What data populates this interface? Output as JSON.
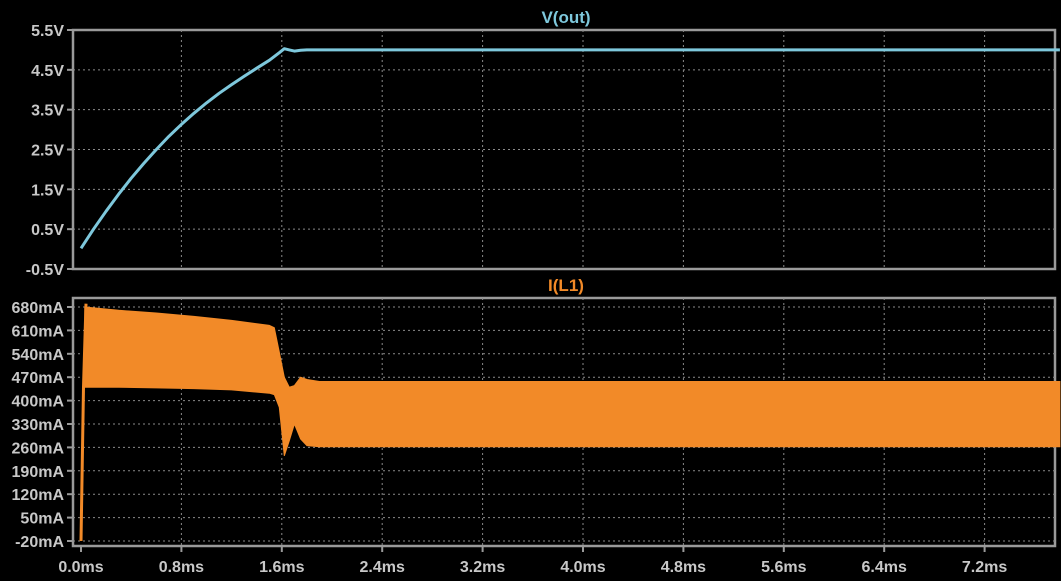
{
  "chart_data": [
    {
      "type": "line",
      "title": "V(out)",
      "color": "#7ec8dc",
      "ylim": [
        -0.5,
        5.5
      ],
      "xlim": [
        0,
        7.8
      ],
      "x_unit": "ms",
      "y_ticks": [
        "5.5V",
        "4.5V",
        "3.5V",
        "2.5V",
        "1.5V",
        "0.5V",
        "-0.5V"
      ],
      "y_tick_values": [
        5.5,
        4.5,
        3.5,
        2.5,
        1.5,
        0.5,
        -0.5
      ],
      "series": [
        {
          "x": [
            0,
            0.1,
            0.2,
            0.3,
            0.4,
            0.5,
            0.6,
            0.7,
            0.8,
            0.9,
            1.0,
            1.1,
            1.2,
            1.3,
            1.4,
            1.5,
            1.58,
            1.62,
            1.66,
            1.7,
            1.75,
            1.8,
            2.0,
            2.4,
            3.2,
            4.0,
            4.8,
            5.6,
            6.4,
            7.2,
            7.8
          ],
          "y": [
            0.02,
            0.5,
            0.95,
            1.38,
            1.78,
            2.15,
            2.5,
            2.83,
            3.13,
            3.41,
            3.67,
            3.91,
            4.13,
            4.34,
            4.54,
            4.74,
            4.93,
            5.03,
            5.0,
            4.97,
            4.99,
            5.0,
            5.0,
            5.0,
            5.0,
            5.0,
            5.0,
            5.0,
            5.0,
            5.0,
            5.0
          ]
        }
      ]
    },
    {
      "type": "area",
      "title": "I(L1)",
      "color": "#f28a28",
      "ylim": [
        -20,
        720
      ],
      "xlim": [
        0,
        7.8
      ],
      "x_unit": "ms",
      "y_ticks": [
        "680mA",
        "610mA",
        "540mA",
        "470mA",
        "400mA",
        "330mA",
        "260mA",
        "190mA",
        "120mA",
        "50mA",
        "-20mA"
      ],
      "y_tick_values": [
        680,
        610,
        540,
        470,
        400,
        330,
        260,
        190,
        120,
        50,
        -20
      ],
      "ripple_envelope": {
        "x": [
          0.03,
          0.3,
          0.6,
          0.9,
          1.2,
          1.5,
          1.54,
          1.58,
          1.62,
          1.66,
          1.7,
          1.75,
          1.8,
          1.9,
          2.0,
          3.0,
          4.0,
          5.0,
          6.0,
          7.0,
          7.8
        ],
        "upper": [
          680,
          670,
          662,
          652,
          640,
          625,
          618,
          545,
          470,
          440,
          445,
          470,
          463,
          457,
          457,
          457,
          457,
          457,
          457,
          457,
          457
        ],
        "lower": [
          440,
          440,
          438,
          436,
          432,
          422,
          418,
          380,
          235,
          280,
          330,
          285,
          265,
          262,
          262,
          262,
          262,
          262,
          262,
          262,
          262
        ]
      },
      "startup_spike": {
        "x": [
          0,
          0.02,
          0.04
        ],
        "y": [
          -20,
          440,
          690
        ]
      }
    }
  ],
  "x_ticks": [
    "0.0ms",
    "0.8ms",
    "1.6ms",
    "2.4ms",
    "3.2ms",
    "4.0ms",
    "4.8ms",
    "5.6ms",
    "6.4ms",
    "7.2ms"
  ],
  "x_tick_values": [
    0,
    0.8,
    1.6,
    2.4,
    3.2,
    4.0,
    4.8,
    5.6,
    6.4,
    7.2
  ]
}
